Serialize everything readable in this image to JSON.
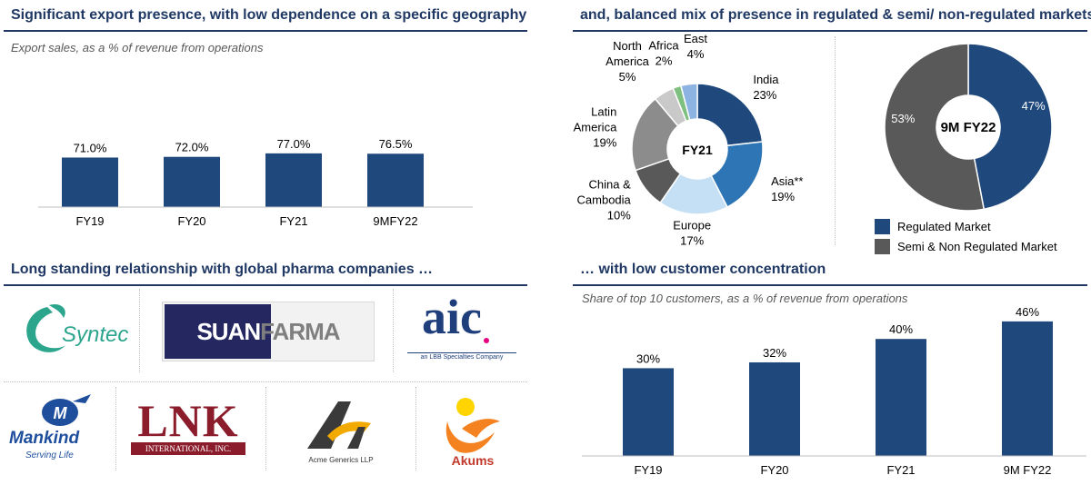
{
  "sections": {
    "export_title": "Significant export presence, with low dependence on a specific geography",
    "export_subtitle": "Export sales, as a % of revenue from operations",
    "mix_title": "and, balanced mix of presence in regulated & semi/ non-regulated markets",
    "partners_title": "Long standing relationship with global pharma companies …",
    "customers_title": "… with low customer concentration",
    "customers_subtitle": "Share of top 10 customers, as a % of revenue from operations"
  },
  "colors": {
    "navy": "#1f497d",
    "heading": "#1f3864",
    "mid_blue": "#2e75b6",
    "light_blue": "#9dc3e6",
    "dark_grey": "#595959",
    "grey": "#7f7f7f",
    "mid_grey": "#a6a6a6",
    "light_grey": "#c9c9c9",
    "green": "#7fbf7f",
    "sky": "#8db3e2"
  },
  "partners": {
    "syntec": "Syntec",
    "suanfarma_a": "SUAN",
    "suanfarma_b": "FARMA",
    "aic": "aic",
    "aic_tagline": "an LBB Specialties Company",
    "mankind": "Mankind",
    "mankind_tagline": "Serving Life",
    "lnk": "LNK",
    "lnk_tagline": "INTERNATIONAL, INC.",
    "acme": "Acme Generics LLP",
    "akums": "Akums"
  },
  "chart_data": [
    {
      "type": "bar",
      "categories": [
        "FY19",
        "FY20",
        "FY21",
        "9MFY22"
      ],
      "values": [
        71.0,
        72.0,
        77.0,
        76.5
      ],
      "data_labels": [
        "71.0%",
        "72.0%",
        "77.0%",
        "76.5%"
      ],
      "subtitle": "Export sales, as a % of revenue from operations",
      "ylim": [
        0,
        100
      ],
      "grid": false,
      "color": "#1f497d"
    },
    {
      "type": "pie",
      "variant": "donut",
      "center_label": "FY21",
      "slices": [
        {
          "name": "India",
          "value": 23,
          "label": "23%",
          "color": "#1f497d"
        },
        {
          "name": "Asia**",
          "value": 19,
          "label": "19%",
          "color": "#2e75b6"
        },
        {
          "name": "Europe",
          "value": 17,
          "label": "17%",
          "color": "#c5e0f4"
        },
        {
          "name": "China & Cambodia",
          "value": 10,
          "label": "10%",
          "color": "#595959"
        },
        {
          "name": "Latin America",
          "value": 19,
          "label": "19%",
          "color": "#8c8c8c"
        },
        {
          "name": "North America",
          "value": 5,
          "label": "5%",
          "color": "#c9c9c9"
        },
        {
          "name": "Africa",
          "value": 2,
          "label": "2%",
          "color": "#7fbf7f"
        },
        {
          "name": "Middle East",
          "value": 4,
          "label": "4%",
          "color": "#8db3e2"
        }
      ]
    },
    {
      "type": "pie",
      "variant": "donut",
      "center_label": "9M FY22",
      "slices": [
        {
          "name": "Regulated Market",
          "value": 47,
          "label": "47%",
          "color": "#1f497d"
        },
        {
          "name": "Semi & Non Regulated Market",
          "value": 53,
          "label": "53%",
          "color": "#595959"
        }
      ],
      "legend": "bottom"
    },
    {
      "type": "bar",
      "categories": [
        "FY19",
        "FY20",
        "FY21",
        "9M FY22"
      ],
      "values": [
        30,
        32,
        40,
        46
      ],
      "data_labels": [
        "30%",
        "32%",
        "40%",
        "46%"
      ],
      "subtitle": "Share of top 10 customers, as a % of revenue from operations",
      "ylim": [
        0,
        50
      ],
      "grid": false,
      "color": "#1f497d"
    }
  ]
}
